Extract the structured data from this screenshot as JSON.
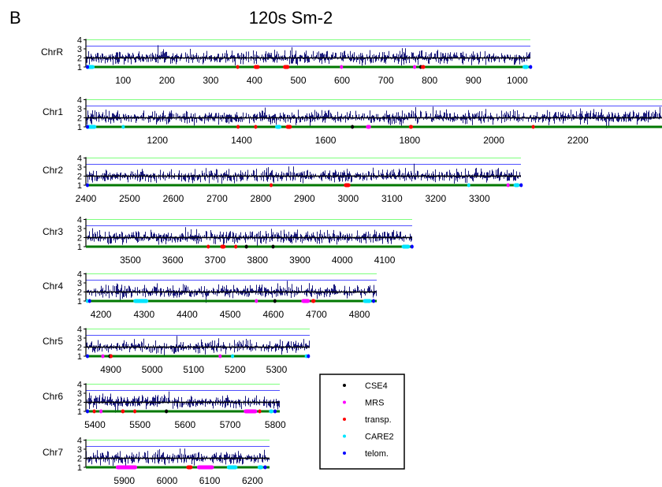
{
  "figure": {
    "panel_letter": "B",
    "title": "120s Sm-2"
  },
  "colors": {
    "signal": "#00006e",
    "baseline": "#000000",
    "upper_line_green": "#7dff7d",
    "upper_line_blue": "#5050ff",
    "chromosome_axis": "#007800",
    "CSE4": "#000000",
    "MRS": "#ff00ff",
    "transp.": "#ff0000",
    "CARE2": "#00e5ff",
    "telom.": "#0000ff"
  },
  "chart_data": {
    "type": "line",
    "ylabel_ticks": [
      "1",
      "2",
      "3",
      "4"
    ],
    "legend": {
      "placement": "lower-right",
      "entries": [
        {
          "label": "CSE4",
          "color_key": "CSE4"
        },
        {
          "label": "MRS",
          "color_key": "MRS"
        },
        {
          "label": "transp.",
          "color_key": "transp."
        },
        {
          "label": "CARE2",
          "color_key": "CARE2"
        },
        {
          "label": "telom.",
          "color_key": "telom."
        }
      ]
    },
    "chromosomes": [
      {
        "name": "ChrR",
        "xlim": [
          15,
          1030
        ],
        "baseline": 2,
        "ticks": [
          "100",
          "200",
          "300",
          "400",
          "500",
          "600",
          "700",
          "800",
          "900",
          "1000"
        ],
        "features": [
          {
            "type": "CARE2",
            "start": 15,
            "end": 35
          },
          {
            "type": "telom.",
            "start": 15,
            "end": 17
          },
          {
            "type": "transp.",
            "start": 358,
            "end": 362
          },
          {
            "type": "transp.",
            "start": 398,
            "end": 412
          },
          {
            "type": "transp.",
            "start": 465,
            "end": 480
          },
          {
            "type": "MRS",
            "start": 595,
            "end": 600
          },
          {
            "type": "MRS",
            "start": 762,
            "end": 766
          },
          {
            "type": "CSE4",
            "start": 776,
            "end": 779
          },
          {
            "type": "transp.",
            "start": 780,
            "end": 790
          },
          {
            "type": "CARE2",
            "start": 1012,
            "end": 1026
          },
          {
            "type": "telom.",
            "start": 1027,
            "end": 1030
          }
        ]
      },
      {
        "name": "Chr1",
        "xlim": [
          1030,
          2400
        ],
        "baseline": 2,
        "ticks": [
          "1200",
          "1400",
          "1600",
          "1800",
          "2000",
          "2200"
        ],
        "features": [
          {
            "type": "CARE2",
            "start": 1030,
            "end": 1055
          },
          {
            "type": "telom.",
            "start": 1030,
            "end": 1033
          },
          {
            "type": "CARE2",
            "start": 1115,
            "end": 1118
          },
          {
            "type": "transp.",
            "start": 1388,
            "end": 1392
          },
          {
            "type": "transp.",
            "start": 1430,
            "end": 1434
          },
          {
            "type": "CARE2",
            "start": 1480,
            "end": 1495
          },
          {
            "type": "transp.",
            "start": 1505,
            "end": 1520
          },
          {
            "type": "CSE4",
            "start": 1660,
            "end": 1663
          },
          {
            "type": "MRS",
            "start": 1696,
            "end": 1708
          },
          {
            "type": "transp.",
            "start": 1798,
            "end": 1808
          },
          {
            "type": "transp.",
            "start": 2090,
            "end": 2094
          }
        ]
      },
      {
        "name": "Chr2",
        "xlim": [
          2400,
          3395
        ],
        "baseline": 2,
        "ticks": [
          "2400",
          "2500",
          "2600",
          "2700",
          "2800",
          "2900",
          "3000",
          "3100",
          "3200",
          "3300"
        ],
        "features": [
          {
            "type": "telom.",
            "start": 2400,
            "end": 2403
          },
          {
            "type": "transp.",
            "start": 2820,
            "end": 2824
          },
          {
            "type": "transp.",
            "start": 2990,
            "end": 3005
          },
          {
            "type": "CARE2",
            "start": 3272,
            "end": 3275
          },
          {
            "type": "MRS",
            "start": 3362,
            "end": 3367
          },
          {
            "type": "CARE2",
            "start": 3378,
            "end": 3392
          },
          {
            "type": "telom.",
            "start": 3392,
            "end": 3395
          }
        ]
      },
      {
        "name": "Chr3",
        "xlim": [
          3395,
          4165
        ],
        "baseline": 2,
        "ticks": [
          "3500",
          "3600",
          "3700",
          "3800",
          "3900",
          "4000",
          "4100"
        ],
        "features": [
          {
            "type": "transp.",
            "start": 3680,
            "end": 3685
          },
          {
            "type": "transp.",
            "start": 3712,
            "end": 3725
          },
          {
            "type": "transp.",
            "start": 3745,
            "end": 3748
          },
          {
            "type": "CSE4",
            "start": 3770,
            "end": 3773
          },
          {
            "type": "CSE4",
            "start": 3833,
            "end": 3836
          },
          {
            "type": "CARE2",
            "start": 4140,
            "end": 4160
          },
          {
            "type": "telom.",
            "start": 4161,
            "end": 4165
          }
        ]
      },
      {
        "name": "Chr4",
        "xlim": [
          4165,
          4840
        ],
        "baseline": 2,
        "ticks": [
          "4200",
          "4300",
          "4400",
          "4500",
          "4600",
          "4700",
          "4800"
        ],
        "features": [
          {
            "type": "CARE2",
            "start": 4165,
            "end": 4170
          },
          {
            "type": "telom.",
            "start": 4170,
            "end": 4173
          },
          {
            "type": "CARE2",
            "start": 4275,
            "end": 4310
          },
          {
            "type": "MRS",
            "start": 4557,
            "end": 4561
          },
          {
            "type": "CSE4",
            "start": 4600,
            "end": 4603
          },
          {
            "type": "MRS",
            "start": 4665,
            "end": 4685
          },
          {
            "type": "transp.",
            "start": 4688,
            "end": 4698
          },
          {
            "type": "CARE2",
            "start": 4808,
            "end": 4828
          },
          {
            "type": "telom.",
            "start": 4829,
            "end": 4833
          }
        ]
      },
      {
        "name": "Chr5",
        "xlim": [
          4840,
          5380
        ],
        "baseline": 2,
        "ticks": [
          "4900",
          "5000",
          "5100",
          "5200",
          "5300"
        ],
        "features": [
          {
            "type": "telom.",
            "start": 4840,
            "end": 4843
          },
          {
            "type": "MRS",
            "start": 4877,
            "end": 4880
          },
          {
            "type": "CSE4",
            "start": 4894,
            "end": 4897
          },
          {
            "type": "transp.",
            "start": 4897,
            "end": 4900
          },
          {
            "type": "MRS",
            "start": 5160,
            "end": 5164
          },
          {
            "type": "CARE2",
            "start": 5190,
            "end": 5194
          },
          {
            "type": "CARE2",
            "start": 5368,
            "end": 5372
          },
          {
            "type": "telom.",
            "start": 5373,
            "end": 5376
          }
        ]
      },
      {
        "name": "Chr6",
        "xlim": [
          5380,
          5810
        ],
        "baseline": 2,
        "ticks": [
          "5400",
          "5500",
          "5600",
          "5700",
          "5800"
        ],
        "features": [
          {
            "type": "telom.",
            "start": 5380,
            "end": 5383
          },
          {
            "type": "transp.",
            "start": 5395,
            "end": 5400
          },
          {
            "type": "MRS",
            "start": 5410,
            "end": 5413
          },
          {
            "type": "transp.",
            "start": 5458,
            "end": 5466
          },
          {
            "type": "transp.",
            "start": 5485,
            "end": 5492
          },
          {
            "type": "CSE4",
            "start": 5555,
            "end": 5558
          },
          {
            "type": "MRS",
            "start": 5730,
            "end": 5760
          },
          {
            "type": "transp.",
            "start": 5762,
            "end": 5768
          },
          {
            "type": "CARE2",
            "start": 5786,
            "end": 5796
          },
          {
            "type": "telom.",
            "start": 5796,
            "end": 5800
          }
        ]
      },
      {
        "name": "Chr7",
        "xlim": [
          5810,
          6240
        ],
        "baseline": 2,
        "ticks": [
          "5900",
          "6000",
          "6100",
          "6200"
        ],
        "features": [
          {
            "type": "MRS",
            "start": 5880,
            "end": 5930
          },
          {
            "type": "transp.",
            "start": 6045,
            "end": 6060
          },
          {
            "type": "MRS",
            "start": 6070,
            "end": 6110
          },
          {
            "type": "CARE2",
            "start": 6140,
            "end": 6165
          },
          {
            "type": "CARE2",
            "start": 6212,
            "end": 6225
          },
          {
            "type": "telom.",
            "start": 6226,
            "end": 6230
          }
        ]
      }
    ]
  }
}
